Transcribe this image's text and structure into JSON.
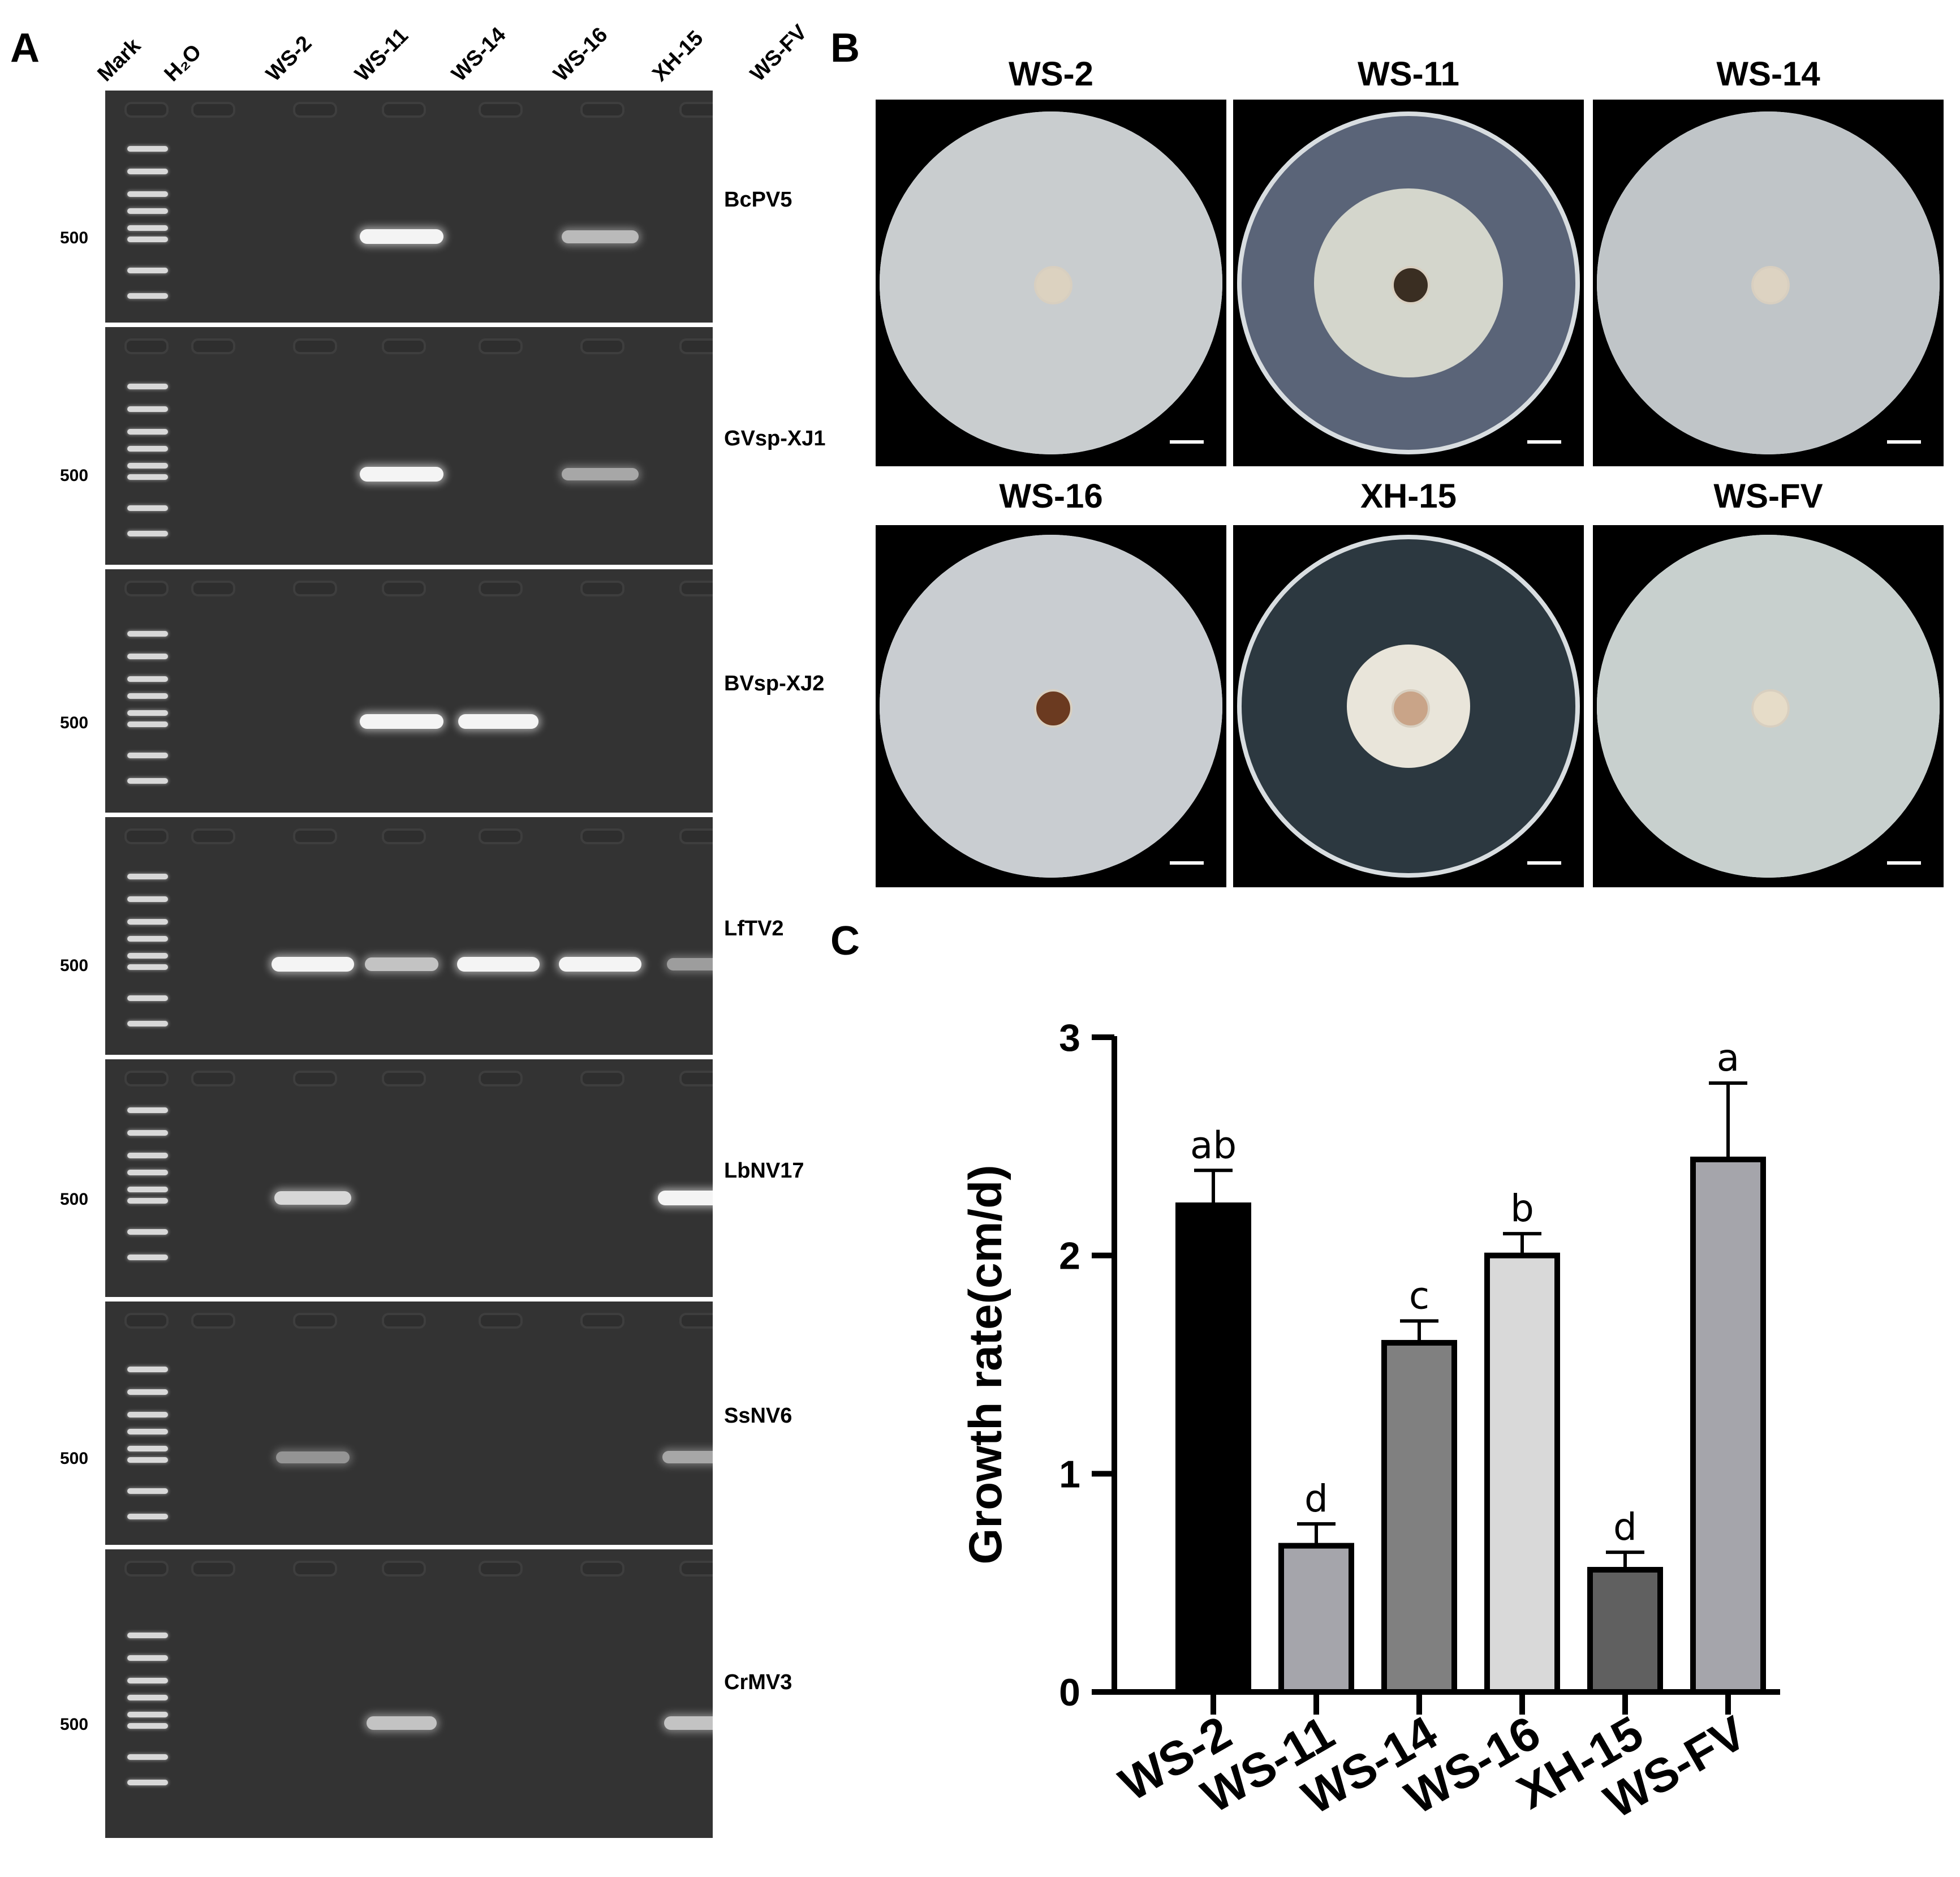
{
  "panels": {
    "a": "A",
    "b": "B",
    "c": "C"
  },
  "gel": {
    "lanes": [
      "Mark",
      "H₂O",
      "WS-2",
      "WS-11",
      "WS-14",
      "WS-16",
      "XH-15",
      "WS-FV"
    ],
    "size_marker_label": "500",
    "viruses": [
      "BcPV5",
      "GVsp-XJ1",
      "BVsp-XJ2",
      "LfTV2",
      "LbNV17",
      "SsNV6",
      "CrMV3"
    ]
  },
  "plates": {
    "top": [
      "WS-2",
      "WS-11",
      "WS-14"
    ],
    "bottom": [
      "WS-16",
      "XH-15",
      "WS-FV"
    ]
  },
  "chart_data": {
    "type": "bar",
    "categories": [
      "WS-2",
      "WS-11",
      "WS-14",
      "WS-16",
      "XH-15",
      "WS-FV"
    ],
    "values": [
      2.23,
      0.67,
      1.6,
      2.0,
      0.56,
      2.44
    ],
    "errors": [
      0.16,
      0.1,
      0.1,
      0.1,
      0.08,
      0.35
    ],
    "letters": [
      "ab",
      "d",
      "c",
      "b",
      "d",
      "a"
    ],
    "colors": [
      "#000000",
      "#a5a5ab",
      "#808080",
      "#d9d9d9",
      "#606060",
      "#a5a5ab"
    ],
    "ylabel": "Growth rate(cm/d)",
    "xlabel": "",
    "title": "",
    "ylim": [
      0,
      3
    ],
    "yticks": [
      "0",
      "1",
      "2",
      "3"
    ]
  }
}
